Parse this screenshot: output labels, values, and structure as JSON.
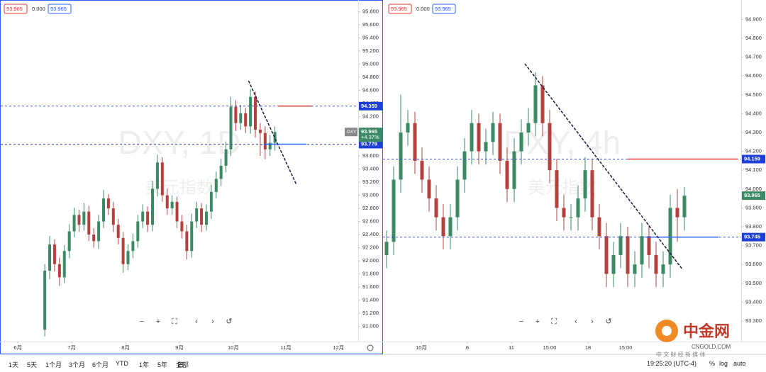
{
  "chart_data": [
    {
      "type": "candlestick",
      "symbol": "DXY",
      "watermark": "DXY, 1D",
      "watermark_sub": "美元指数",
      "legend": [
        "93.965",
        "0.000",
        "93.965"
      ],
      "last_price": 93.965,
      "change": "+4.37%",
      "colors": {
        "up": "#3b8a63",
        "down": "#b5413f"
      },
      "xlim": [
        0,
        146
      ],
      "ylim": [
        90.77,
        95.977
      ],
      "xticks": [
        {
          "value": 7,
          "label": "6月"
        },
        {
          "value": 29,
          "label": "7月"
        },
        {
          "value": 51,
          "label": "8月"
        },
        {
          "value": 73,
          "label": "9月"
        },
        {
          "value": 95,
          "label": "10月"
        },
        {
          "value": 116.5,
          "label": "11月"
        },
        {
          "value": 138,
          "label": "12月"
        }
      ],
      "yticks": [
        {
          "value": 91.0,
          "label": "91.000"
        },
        {
          "value": 91.2,
          "label": "91.200"
        },
        {
          "value": 91.4,
          "label": "91.400"
        },
        {
          "value": 91.6,
          "label": "91.600"
        },
        {
          "value": 91.8,
          "label": "91.800"
        },
        {
          "value": 92.0,
          "label": "92.000"
        },
        {
          "value": 92.2,
          "label": "92.200"
        },
        {
          "value": 92.4,
          "label": "92.400"
        },
        {
          "value": 92.6,
          "label": "92.600"
        },
        {
          "value": 92.8,
          "label": "92.800"
        },
        {
          "value": 93.0,
          "label": "93.000"
        },
        {
          "value": 93.2,
          "label": "93.200"
        },
        {
          "value": 93.4,
          "label": "93.400"
        },
        {
          "value": 93.6,
          "label": "93.600"
        },
        {
          "value": 93.8,
          "label": "93.800"
        },
        {
          "value": 94.0,
          "label": "94.000"
        },
        {
          "value": 94.2,
          "label": "94.200"
        },
        {
          "value": 94.4,
          "label": "94.400"
        },
        {
          "value": 94.6,
          "label": "94.600"
        },
        {
          "value": 94.8,
          "label": "94.800"
        },
        {
          "value": 95.0,
          "label": "95.000"
        },
        {
          "value": 95.2,
          "label": "95.200"
        },
        {
          "value": 95.4,
          "label": "95.400"
        },
        {
          "value": 95.6,
          "label": "95.600"
        },
        {
          "value": 95.8,
          "label": "95.800"
        }
      ],
      "hlines": [
        {
          "value": 94.359,
          "segment_color": "#e53935"
        },
        {
          "value": 93.779,
          "segment_color": "#2962ff"
        }
      ],
      "trendline": {
        "x": [
          101.2,
          120.8
        ],
        "y": [
          94.746,
          93.16
        ]
      },
      "x": [
        18,
        20,
        22,
        24,
        26,
        28,
        30,
        32,
        34,
        36,
        38,
        40,
        42,
        44,
        46,
        48,
        50,
        52,
        54,
        56,
        58,
        60,
        62,
        64,
        66,
        68,
        70,
        72,
        74,
        76,
        78,
        80,
        82,
        84,
        86,
        88,
        90,
        92,
        94,
        96,
        98,
        100,
        102,
        104,
        106,
        108,
        110,
        112
      ],
      "open": [
        90.95,
        91.85,
        92.25,
        91.95,
        91.75,
        92.15,
        92.45,
        92.7,
        92.55,
        92.75,
        92.4,
        92.3,
        92.6,
        92.95,
        92.8,
        92.55,
        92.35,
        91.95,
        92.15,
        92.3,
        92.6,
        92.75,
        92.55,
        93.1,
        93.5,
        93.0,
        92.8,
        92.9,
        92.6,
        92.45,
        92.15,
        92.6,
        92.8,
        92.55,
        92.75,
        93.05,
        93.25,
        93.45,
        93.7,
        94.35,
        94.1,
        94.25,
        94.05,
        94.5,
        94.0,
        93.95,
        93.7,
        93.8
      ],
      "high": [
        91.95,
        92.38,
        92.33,
        92.05,
        92.24,
        92.56,
        92.81,
        92.78,
        92.88,
        92.84,
        92.5,
        92.7,
        93.08,
        93.02,
        92.9,
        92.64,
        92.44,
        92.25,
        92.42,
        92.7,
        92.86,
        92.83,
        93.22,
        93.62,
        93.58,
        93.1,
        93.0,
        92.98,
        92.7,
        92.55,
        92.72,
        92.9,
        92.88,
        92.86,
        93.16,
        93.36,
        93.56,
        93.82,
        94.5,
        94.45,
        94.38,
        94.33,
        94.62,
        94.58,
        94.1,
        94.05,
        93.92,
        94.05
      ],
      "low": [
        90.85,
        91.72,
        91.84,
        91.62,
        91.66,
        92.04,
        92.36,
        92.44,
        92.46,
        92.3,
        92.2,
        92.18,
        92.5,
        92.7,
        92.44,
        92.25,
        91.82,
        91.86,
        92.04,
        92.2,
        92.5,
        92.44,
        92.45,
        92.98,
        92.9,
        92.7,
        92.7,
        92.5,
        92.34,
        92.02,
        92.05,
        92.5,
        92.44,
        92.46,
        92.64,
        92.95,
        93.14,
        93.35,
        93.6,
        93.98,
        94.0,
        93.95,
        93.94,
        93.88,
        93.6,
        93.55,
        93.6,
        93.68
      ],
      "close": [
        91.85,
        92.25,
        91.95,
        91.75,
        92.15,
        92.45,
        92.7,
        92.55,
        92.75,
        92.4,
        92.3,
        92.6,
        92.95,
        92.8,
        92.55,
        92.35,
        91.95,
        92.15,
        92.3,
        92.6,
        92.75,
        92.55,
        93.1,
        93.5,
        93.0,
        92.8,
        92.9,
        92.6,
        92.45,
        92.15,
        92.6,
        92.8,
        92.55,
        92.75,
        93.05,
        93.25,
        93.45,
        93.7,
        94.35,
        94.1,
        94.25,
        94.05,
        94.5,
        94.0,
        93.95,
        93.7,
        93.8,
        93.965
      ]
    },
    {
      "type": "candlestick",
      "symbol": "DXY",
      "watermark": "DXY, 4h",
      "watermark_sub": "美元指数",
      "legend": [
        "93.965",
        "0.000",
        "93.965"
      ],
      "last_price": 93.965,
      "colors": {
        "up": "#3b8a63",
        "down": "#b5413f"
      },
      "xlim": [
        0,
        101
      ],
      "ylim": [
        93.191,
        95.003
      ],
      "xticks": [
        {
          "value": 10.8,
          "label": "10月"
        },
        {
          "value": 23.8,
          "label": "6"
        },
        {
          "value": 36.2,
          "label": "11"
        },
        {
          "value": 47,
          "label": "15:00"
        },
        {
          "value": 57.8,
          "label": "18"
        },
        {
          "value": 68.4,
          "label": "15:00"
        }
      ],
      "yticks": [
        {
          "value": 93.3,
          "label": "93.300"
        },
        {
          "value": 93.4,
          "label": "93.400"
        },
        {
          "value": 93.5,
          "label": "93.500"
        },
        {
          "value": 93.6,
          "label": "93.600"
        },
        {
          "value": 93.7,
          "label": "93.700"
        },
        {
          "value": 93.8,
          "label": "93.800"
        },
        {
          "value": 93.9,
          "label": "93.900"
        },
        {
          "value": 94.0,
          "label": "94.000"
        },
        {
          "value": 94.1,
          "label": "94.100"
        },
        {
          "value": 94.2,
          "label": "94.200"
        },
        {
          "value": 94.3,
          "label": "94.300"
        },
        {
          "value": 94.4,
          "label": "94.400"
        },
        {
          "value": 94.5,
          "label": "94.500"
        },
        {
          "value": 94.6,
          "label": "94.600"
        },
        {
          "value": 94.7,
          "label": "94.700"
        },
        {
          "value": 94.8,
          "label": "94.800"
        },
        {
          "value": 94.9,
          "label": "94.900"
        }
      ],
      "hlines": [
        {
          "value": 94.159,
          "segment_color": "#e53935"
        },
        {
          "value": 93.745,
          "segment_color": "#2962ff"
        }
      ],
      "trendline": {
        "x": [
          40,
          84.4
        ],
        "y": [
          94.665,
          93.575
        ]
      },
      "x": [
        1,
        3,
        5,
        7,
        9,
        11,
        13,
        15,
        17,
        19,
        21,
        23,
        25,
        27,
        29,
        31,
        33,
        35,
        37,
        39,
        41,
        43,
        45,
        47,
        49,
        51,
        53,
        55,
        57,
        59,
        61,
        63,
        65,
        67,
        69,
        71,
        73,
        75,
        77,
        79,
        81,
        83,
        85
      ],
      "open": [
        93.65,
        93.72,
        94.05,
        94.3,
        94.35,
        94.15,
        94.05,
        93.95,
        93.85,
        93.75,
        93.85,
        94.05,
        94.2,
        94.35,
        94.2,
        94.25,
        94.35,
        94.15,
        94.0,
        94.2,
        94.3,
        94.35,
        94.55,
        94.35,
        94.1,
        93.9,
        93.85,
        93.85,
        93.95,
        94.1,
        93.85,
        93.75,
        93.55,
        93.65,
        93.75,
        93.55,
        93.6,
        93.75,
        93.65,
        93.55,
        93.6,
        93.9,
        93.85
      ],
      "high": [
        93.78,
        94.12,
        94.5,
        94.42,
        94.41,
        94.22,
        94.12,
        94.02,
        93.92,
        93.92,
        94.12,
        94.27,
        94.42,
        94.4,
        94.32,
        94.41,
        94.4,
        94.22,
        94.27,
        94.37,
        94.43,
        94.62,
        94.6,
        94.42,
        94.16,
        93.97,
        93.92,
        94.02,
        94.17,
        94.16,
        93.92,
        93.82,
        93.72,
        93.82,
        93.8,
        93.67,
        93.82,
        93.81,
        93.72,
        93.67,
        93.97,
        94.0,
        94.01
      ],
      "low": [
        93.58,
        93.65,
        93.98,
        94.23,
        94.08,
        93.98,
        93.88,
        93.78,
        93.68,
        93.68,
        93.78,
        93.98,
        94.13,
        94.13,
        94.13,
        94.18,
        94.08,
        93.93,
        93.93,
        94.13,
        94.23,
        94.28,
        94.28,
        94.03,
        93.83,
        93.78,
        93.78,
        93.78,
        93.88,
        93.78,
        93.68,
        93.48,
        93.48,
        93.58,
        93.48,
        93.48,
        93.53,
        93.58,
        93.48,
        93.48,
        93.53,
        93.72,
        93.78
      ],
      "close": [
        93.72,
        94.05,
        94.3,
        94.35,
        94.15,
        94.05,
        93.95,
        93.85,
        93.75,
        93.85,
        94.05,
        94.2,
        94.35,
        94.2,
        94.25,
        94.35,
        94.15,
        94.0,
        94.2,
        94.3,
        94.35,
        94.55,
        94.35,
        94.1,
        93.9,
        93.85,
        93.85,
        93.95,
        94.1,
        93.85,
        93.75,
        93.55,
        93.65,
        93.75,
        93.55,
        93.6,
        93.75,
        93.65,
        93.55,
        93.6,
        93.9,
        93.85,
        93.965
      ]
    }
  ],
  "toolbar": {
    "ranges": [
      "1天",
      "5天",
      "1个月",
      "3个月",
      "6个月",
      "YTD",
      "1年",
      "5年",
      "全部"
    ],
    "clock": "19:25:20 (UTC-4)",
    "options": [
      "%",
      "log",
      "auto"
    ]
  },
  "logo": {
    "name": "中金网",
    "domain": "CNGOLD.COM",
    "tagline": "中 文 财 经 新 媒 体"
  }
}
